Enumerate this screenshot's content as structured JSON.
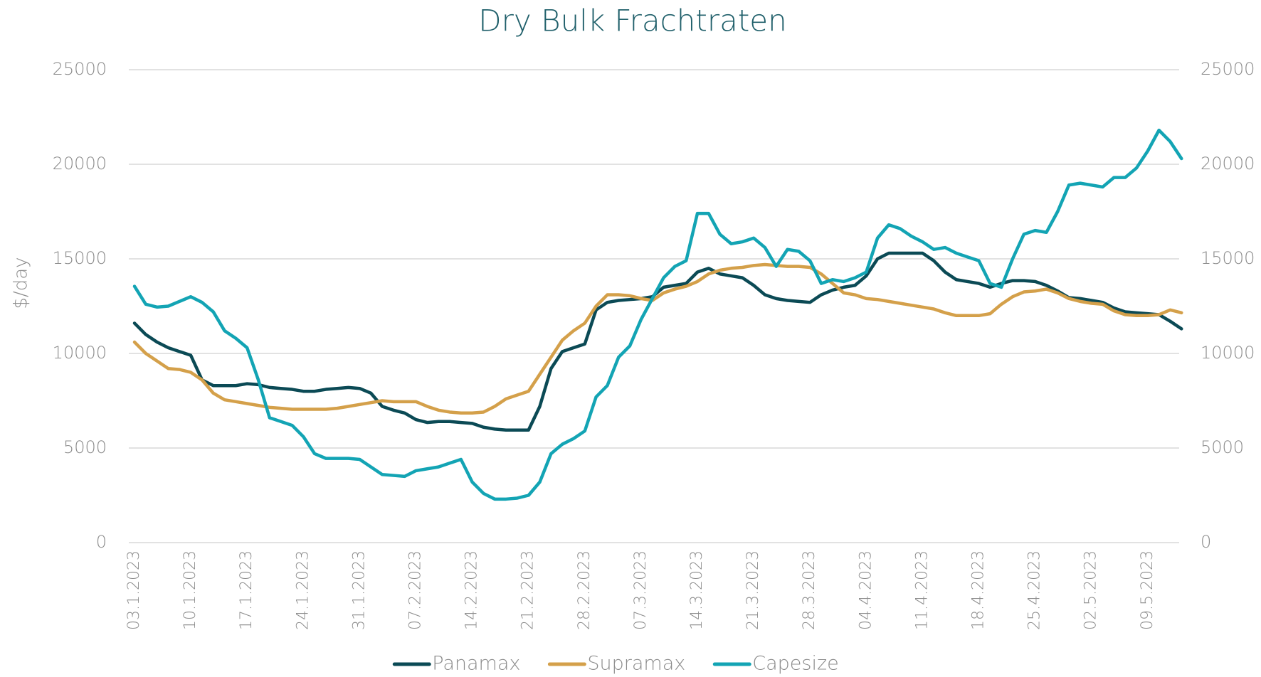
{
  "chart_data": {
    "type": "line",
    "title": "Dry Bulk Frachtraten",
    "y_label": "$/day",
    "categories": [
      "03.1.2023",
      null,
      null,
      null,
      null,
      "10.1.2023",
      null,
      null,
      null,
      null,
      "17.1.2023",
      null,
      null,
      null,
      null,
      "24.1.2023",
      null,
      null,
      null,
      null,
      "31.1.2023",
      null,
      null,
      null,
      null,
      "07.2.2023",
      null,
      null,
      null,
      null,
      "14.2.2023",
      null,
      null,
      null,
      null,
      "21.2.2023",
      null,
      null,
      null,
      null,
      "28.2.2023",
      null,
      null,
      null,
      null,
      "07.3.2023",
      null,
      null,
      null,
      null,
      "14.3.2023",
      null,
      null,
      null,
      null,
      "21.3.2023",
      null,
      null,
      null,
      null,
      "28.3.2023",
      null,
      null,
      null,
      null,
      "04.4.2023",
      null,
      null,
      null,
      null,
      "11.4.2023",
      null,
      null,
      null,
      null,
      "18.4.2023",
      null,
      null,
      null,
      null,
      "25.4.2023",
      null,
      null,
      null,
      null,
      "02.5.2023",
      null,
      null,
      null,
      null,
      "09.5.2023",
      null,
      null,
      null
    ],
    "series": [
      {
        "name": "Panamax",
        "color": "#0b4a55",
        "values": [
          11600,
          11000,
          10600,
          10300,
          10100,
          9900,
          8600,
          8300,
          8300,
          8300,
          8400,
          8350,
          8200,
          8150,
          8100,
          8000,
          8000,
          8100,
          8150,
          8200,
          8150,
          7900,
          7200,
          7000,
          6850,
          6500,
          6350,
          6400,
          6400,
          6350,
          6300,
          6100,
          6000,
          5950,
          5950,
          5950,
          7200,
          9200,
          10100,
          10300,
          10500,
          12300,
          12700,
          12800,
          12850,
          12900,
          13000,
          13500,
          13600,
          13700,
          14300,
          14500,
          14200,
          14100,
          14000,
          13600,
          13100,
          12900,
          12800,
          12750,
          12700,
          13100,
          13350,
          13500,
          13600,
          14100,
          15000,
          15300,
          15300,
          15300,
          15300,
          14900,
          14300,
          13900,
          13800,
          13700,
          13500,
          13700,
          13850,
          13850,
          13800,
          13600,
          13300,
          12950,
          12900,
          12800,
          12700,
          12400,
          12200,
          12150,
          12100,
          12050,
          11700,
          11300
        ]
      },
      {
        "name": "Supramax",
        "color": "#d4a04a",
        "values": [
          10600,
          10000,
          9600,
          9200,
          9150,
          9000,
          8600,
          7900,
          7550,
          7450,
          7350,
          7250,
          7150,
          7100,
          7050,
          7050,
          7050,
          7050,
          7100,
          7200,
          7300,
          7400,
          7500,
          7450,
          7450,
          7450,
          7200,
          7000,
          6900,
          6850,
          6850,
          6900,
          7200,
          7600,
          7800,
          8000,
          8900,
          9800,
          10700,
          11200,
          11600,
          12500,
          13100,
          13100,
          13050,
          12900,
          12800,
          13200,
          13400,
          13550,
          13800,
          14200,
          14400,
          14500,
          14550,
          14650,
          14700,
          14650,
          14600,
          14600,
          14550,
          14200,
          13700,
          13200,
          13100,
          12900,
          12850,
          12750,
          12650,
          12550,
          12450,
          12350,
          12150,
          12000,
          12000,
          12000,
          12100,
          12600,
          13000,
          13250,
          13300,
          13400,
          13200,
          12900,
          12750,
          12650,
          12600,
          12250,
          12050,
          12000,
          12000,
          12050,
          12300,
          12150
        ]
      },
      {
        "name": "Capesize",
        "color": "#13a4b4",
        "values": [
          13550,
          12600,
          12450,
          12500,
          12750,
          13000,
          12700,
          12200,
          11200,
          10800,
          10300,
          8600,
          6600,
          6400,
          6200,
          5600,
          4700,
          4450,
          4450,
          4450,
          4400,
          4000,
          3600,
          3550,
          3500,
          3800,
          3900,
          4000,
          4200,
          4400,
          3200,
          2600,
          2300,
          2300,
          2350,
          2500,
          3200,
          4700,
          5200,
          5500,
          5900,
          7700,
          8300,
          9800,
          10400,
          11800,
          12900,
          14000,
          14600,
          14900,
          17400,
          17400,
          16300,
          15800,
          15900,
          16100,
          15600,
          14600,
          15500,
          15400,
          14900,
          13700,
          13900,
          13800,
          14000,
          14300,
          16100,
          16800,
          16600,
          16200,
          15900,
          15500,
          15600,
          15300,
          15100,
          14900,
          13700,
          13500,
          15000,
          16300,
          16500,
          16400,
          17500,
          18900,
          19000,
          18900,
          18800,
          19300,
          19300,
          19800,
          20700,
          21800,
          21200,
          20300
        ]
      }
    ],
    "ylim": [
      0,
      25000
    ],
    "yticks": [
      0,
      5000,
      10000,
      15000,
      20000,
      25000
    ],
    "y2lim": [
      0,
      25000
    ],
    "y2ticks": [
      0,
      5000,
      10000,
      15000,
      20000,
      25000
    ],
    "grid": true,
    "legend": "bottom"
  }
}
